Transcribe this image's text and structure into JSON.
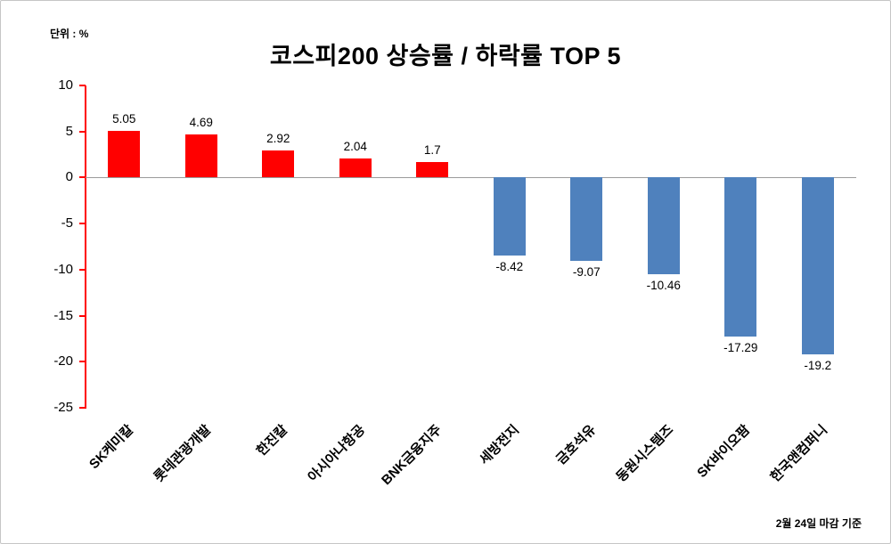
{
  "chart_data": {
    "type": "bar",
    "title": "코스피200 상승률 / 하락률  TOP 5",
    "unit_label": "단위 : %",
    "footnote": "2월 24일 마감 기준",
    "categories": [
      "SK케미칼",
      "롯데관광개발",
      "한진칼",
      "아시아나항공",
      "BNK금융지주",
      "세방전지",
      "금호석유",
      "동원시스템즈",
      "SK바이오팜",
      "한국앤컴퍼니"
    ],
    "values": [
      5.05,
      4.69,
      2.92,
      2.04,
      1.7,
      -8.42,
      -9.07,
      -10.46,
      -17.29,
      -19.2
    ],
    "value_labels": [
      "5.05",
      "4.69",
      "2.92",
      "2.04",
      "1.7",
      "-8.42",
      "-9.07",
      "-10.46",
      "-17.29",
      "-19.2"
    ],
    "xlabel": "",
    "ylabel": "",
    "ylim": [
      -25,
      10
    ],
    "yticks": [
      10,
      5,
      0,
      -5,
      -10,
      -15,
      -20,
      -25
    ],
    "grid": false,
    "legend": "none",
    "positive_color": "#ff0000",
    "negative_color": "#4f81bd",
    "axis_color": "#ff0000",
    "zero_line_color": "#9b9b9b"
  }
}
